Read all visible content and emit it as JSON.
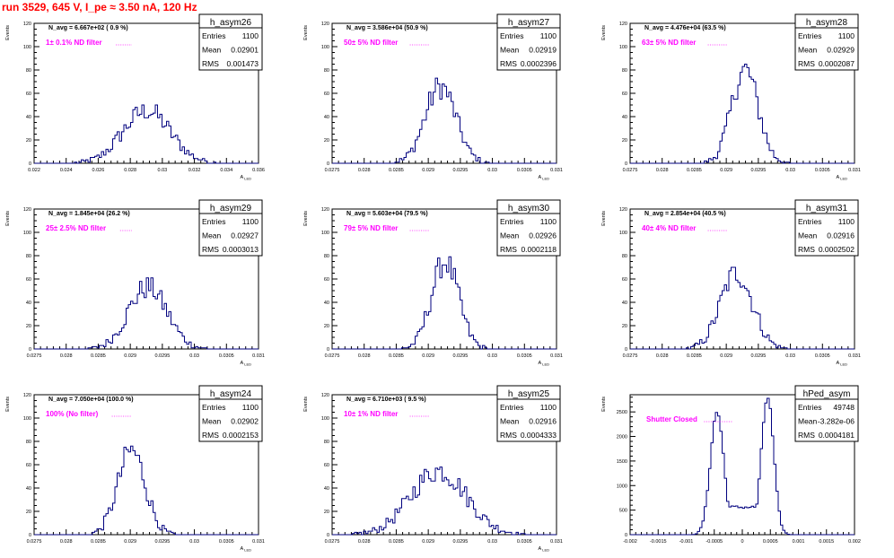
{
  "run_title": "run 3529,   645 V, I_pe ≈ 3.50 nA, 120 Hz",
  "colors": {
    "histogram_line": "#00007f",
    "filter_label": "#ff00ff",
    "run_title": "#ff0000",
    "frame": "#000000",
    "background": "#ffffff"
  },
  "chart_data": [
    {
      "type": "histogram",
      "name": "h_asym26",
      "stats": {
        "entries_label": "Entries",
        "entries": "1100",
        "mean_label": "Mean",
        "mean": "0.02901",
        "rms_label": "RMS",
        "rms": "0.001473"
      },
      "navg_label": "N_avg = 6.667e+02 ( 0.9 %)",
      "filter_label": "1± 0.1% ND filter",
      "ylabel": "Events",
      "xlabel": "A_LED",
      "xlim": [
        0.022,
        0.036
      ],
      "ylim": [
        0,
        120
      ],
      "xticks": [
        "0.022",
        "0.024",
        "0.026",
        "0.028",
        "0.03",
        "0.032",
        "0.034",
        "0.036"
      ],
      "yticks": [
        "0",
        "20",
        "40",
        "60",
        "80",
        "100",
        "120"
      ],
      "xtick_values": [
        0.022,
        0.024,
        0.026,
        0.028,
        0.03,
        0.032,
        0.034,
        0.036
      ],
      "ytick_values": [
        0,
        20,
        40,
        60,
        80,
        100,
        120
      ],
      "x_minor_per_major": 5,
      "y_minor_per_major": 4,
      "peak_bins": [
        [
          0.0275,
          6
        ],
        [
          0.0282,
          17
        ],
        [
          0.0288,
          30
        ],
        [
          0.0294,
          40
        ],
        [
          0.03,
          41
        ],
        [
          0.0306,
          32
        ],
        [
          0.0312,
          19
        ],
        [
          0.0318,
          9
        ]
      ],
      "peak": {
        "mean": 0.02901,
        "sigma": 0.001473,
        "height": 45
      }
    },
    {
      "type": "histogram",
      "name": "h_asym27",
      "stats": {
        "entries_label": "Entries",
        "entries": "1100",
        "mean_label": "Mean",
        "mean": "0.02919",
        "rms_label": "RMS",
        "rms": "0.0002396"
      },
      "navg_label": "N_avg = 3.586e+04 (50.9 %)",
      "filter_label": "50± 5% ND filter",
      "ylabel": "Events",
      "xlabel": "A_LED",
      "xlim": [
        0.0275,
        0.031
      ],
      "ylim": [
        0,
        120
      ],
      "xticks": [
        "0.0275",
        "0.028",
        "0.0285",
        "0.029",
        "0.0295",
        "0.03",
        "0.0305",
        "0.031"
      ],
      "yticks": [
        "0",
        "20",
        "40",
        "60",
        "80",
        "100",
        "120"
      ],
      "xtick_values": [
        0.0275,
        0.028,
        0.0285,
        0.029,
        0.0295,
        0.03,
        0.0305,
        0.031
      ],
      "ytick_values": [
        0,
        20,
        40,
        60,
        80,
        100,
        120
      ],
      "x_minor_per_major": 5,
      "y_minor_per_major": 4,
      "peak": {
        "mean": 0.02919,
        "sigma": 0.0002396,
        "height": 66
      }
    },
    {
      "type": "histogram",
      "name": "h_asym28",
      "stats": {
        "entries_label": "Entries",
        "entries": "1100",
        "mean_label": "Mean",
        "mean": "0.02929",
        "rms_label": "RMS",
        "rms": "0.0002087"
      },
      "navg_label": "N_avg = 4.476e+04 (63.5 %)",
      "filter_label": "63± 5% ND filter",
      "ylabel": "Events",
      "xlabel": "A_LED",
      "xlim": [
        0.0275,
        0.031
      ],
      "ylim": [
        0,
        120
      ],
      "xticks": [
        "0.0275",
        "0.028",
        "0.0285",
        "0.029",
        "0.0295",
        "0.03",
        "0.0305",
        "0.031"
      ],
      "yticks": [
        "0",
        "20",
        "40",
        "60",
        "80",
        "100",
        "120"
      ],
      "xtick_values": [
        0.0275,
        0.028,
        0.0285,
        0.029,
        0.0295,
        0.03,
        0.0305,
        0.031
      ],
      "ytick_values": [
        0,
        20,
        40,
        60,
        80,
        100,
        120
      ],
      "x_minor_per_major": 5,
      "y_minor_per_major": 4,
      "peak": {
        "mean": 0.02929,
        "sigma": 0.0002087,
        "height": 80
      }
    },
    {
      "type": "histogram",
      "name": "h_asym29",
      "stats": {
        "entries_label": "Entries",
        "entries": "1100",
        "mean_label": "Mean",
        "mean": "0.02927",
        "rms_label": "RMS",
        "rms": "0.0003013"
      },
      "navg_label": "N_avg = 1.845e+04 (26.2 %)",
      "filter_label": "25± 2.5% ND filter",
      "ylabel": "Events",
      "xlabel": "A_LED",
      "xlim": [
        0.0275,
        0.031
      ],
      "ylim": [
        0,
        120
      ],
      "xticks": [
        "0.0275",
        "0.028",
        "0.0285",
        "0.029",
        "0.0295",
        "0.03",
        "0.0305",
        "0.031"
      ],
      "yticks": [
        "0",
        "20",
        "40",
        "60",
        "80",
        "100",
        "120"
      ],
      "xtick_values": [
        0.0275,
        0.028,
        0.0285,
        0.029,
        0.0295,
        0.03,
        0.0305,
        0.031
      ],
      "ytick_values": [
        0,
        20,
        40,
        60,
        80,
        100,
        120
      ],
      "x_minor_per_major": 5,
      "y_minor_per_major": 4,
      "peak": {
        "mean": 0.02927,
        "sigma": 0.0003013,
        "height": 53
      }
    },
    {
      "type": "histogram",
      "name": "h_asym30",
      "stats": {
        "entries_label": "Entries",
        "entries": "1100",
        "mean_label": "Mean",
        "mean": "0.02926",
        "rms_label": "RMS",
        "rms": "0.0002118"
      },
      "navg_label": "N_avg = 5.603e+04 (79.5 %)",
      "filter_label": "79± 5% ND filter",
      "ylabel": "Events",
      "xlabel": "A_LED",
      "xlim": [
        0.0275,
        0.031
      ],
      "ylim": [
        0,
        120
      ],
      "xticks": [
        "0.0275",
        "0.028",
        "0.0285",
        "0.029",
        "0.0295",
        "0.03",
        "0.0305",
        "0.031"
      ],
      "yticks": [
        "0",
        "20",
        "40",
        "60",
        "80",
        "100",
        "120"
      ],
      "xtick_values": [
        0.0275,
        0.028,
        0.0285,
        0.029,
        0.0295,
        0.03,
        0.0305,
        0.031
      ],
      "ytick_values": [
        0,
        20,
        40,
        60,
        80,
        100,
        120
      ],
      "x_minor_per_major": 5,
      "y_minor_per_major": 4,
      "peak": {
        "mean": 0.02926,
        "sigma": 0.0002118,
        "height": 75
      }
    },
    {
      "type": "histogram",
      "name": "h_asym31",
      "stats": {
        "entries_label": "Entries",
        "entries": "1100",
        "mean_label": "Mean",
        "mean": "0.02916",
        "rms_label": "RMS",
        "rms": "0.0002502"
      },
      "navg_label": "N_avg = 2.854e+04 (40.5 %)",
      "filter_label": "40± 4% ND filter",
      "ylabel": "Events",
      "xlabel": "A_LED",
      "xlim": [
        0.0275,
        0.031
      ],
      "ylim": [
        0,
        120
      ],
      "xticks": [
        "0.0275",
        "0.028",
        "0.0285",
        "0.029",
        "0.0295",
        "0.03",
        "0.0305",
        "0.031"
      ],
      "yticks": [
        "0",
        "20",
        "40",
        "60",
        "80",
        "100",
        "120"
      ],
      "xtick_values": [
        0.0275,
        0.028,
        0.0285,
        0.029,
        0.0295,
        0.03,
        0.0305,
        0.031
      ],
      "ytick_values": [
        0,
        20,
        40,
        60,
        80,
        100,
        120
      ],
      "x_minor_per_major": 5,
      "y_minor_per_major": 4,
      "peak": {
        "mean": 0.02916,
        "sigma": 0.0002502,
        "height": 65
      }
    },
    {
      "type": "histogram",
      "name": "h_asym24",
      "stats": {
        "entries_label": "Entries",
        "entries": "1100",
        "mean_label": "Mean",
        "mean": "0.02902",
        "rms_label": "RMS",
        "rms": "0.0002153"
      },
      "navg_label": "N_avg = 7.050e+04 (100.0 %)",
      "filter_label": "100% (No filter)",
      "ylabel": "Events",
      "xlabel": "A_LED",
      "xlim": [
        0.0275,
        0.031
      ],
      "ylim": [
        0,
        120
      ],
      "xticks": [
        "0.0275",
        "0.028",
        "0.0285",
        "0.029",
        "0.0295",
        "0.03",
        "0.0305",
        "0.031"
      ],
      "yticks": [
        "0",
        "20",
        "40",
        "60",
        "80",
        "100",
        "120"
      ],
      "xtick_values": [
        0.0275,
        0.028,
        0.0285,
        0.029,
        0.0295,
        0.03,
        0.0305,
        0.031
      ],
      "ytick_values": [
        0,
        20,
        40,
        60,
        80,
        100,
        120
      ],
      "x_minor_per_major": 5,
      "y_minor_per_major": 4,
      "peak": {
        "mean": 0.02902,
        "sigma": 0.0002153,
        "height": 72
      }
    },
    {
      "type": "histogram",
      "name": "h_asym25",
      "stats": {
        "entries_label": "Entries",
        "entries": "1100",
        "mean_label": "Mean",
        "mean": "0.02916",
        "rms_label": "RMS",
        "rms": "0.0004333"
      },
      "navg_label": "N_avg = 6.710e+03 ( 9.5 %)",
      "filter_label": "10± 1% ND filter",
      "ylabel": "Events",
      "xlabel": "A_LED",
      "xlim": [
        0.0275,
        0.031
      ],
      "ylim": [
        0,
        120
      ],
      "xticks": [
        "0.0275",
        "0.028",
        "0.0285",
        "0.029",
        "0.0295",
        "0.03",
        "0.0305",
        "0.031"
      ],
      "yticks": [
        "0",
        "20",
        "40",
        "60",
        "80",
        "100",
        "120"
      ],
      "xtick_values": [
        0.0275,
        0.028,
        0.0285,
        0.029,
        0.0295,
        0.03,
        0.0305,
        0.031
      ],
      "ytick_values": [
        0,
        20,
        40,
        60,
        80,
        100,
        120
      ],
      "x_minor_per_major": 5,
      "y_minor_per_major": 4,
      "peak_bins": [
        [
          0.02855,
          12
        ],
        [
          0.02872,
          25
        ],
        [
          0.02888,
          42
        ],
        [
          0.02905,
          58
        ],
        [
          0.02921,
          60
        ],
        [
          0.02938,
          55
        ],
        [
          0.02955,
          40
        ],
        [
          0.02972,
          22
        ],
        [
          0.02988,
          10
        ]
      ],
      "peak": {
        "mean": 0.02916,
        "sigma": 0.0004333,
        "height": 55
      }
    },
    {
      "type": "histogram",
      "name": "hPed_asym",
      "stats": {
        "entries_label": "Entries",
        "entries": "49748",
        "mean_label": "Mean",
        "mean": "-3.282e-06",
        "rms_label": "RMS",
        "rms": "0.0004181"
      },
      "filter_label": "Shutter Closed",
      "ylabel": "Events",
      "xlabel": "",
      "xlim": [
        -0.002,
        0.002
      ],
      "ylim": [
        0,
        2850
      ],
      "xticks": [
        "-0.002",
        "-0.0015",
        "-0.001",
        "-0.0005",
        "0",
        "0.0005",
        "0.001",
        "0.0015",
        "0.002"
      ],
      "yticks": [
        "0",
        "500",
        "1000",
        "1500",
        "2000",
        "2500"
      ],
      "xtick_values": [
        -0.002,
        -0.0015,
        -0.001,
        -0.0005,
        0,
        0.0005,
        0.001,
        0.0015,
        0.002
      ],
      "ytick_values": [
        0,
        500,
        1000,
        1500,
        2000,
        2500
      ],
      "x_minor_per_major": 5,
      "y_minor_per_major": 5,
      "bimodal": {
        "centers": [
          -0.00045,
          0.00045
        ],
        "sigmas": [
          0.00012,
          0.00011
        ],
        "heights": [
          2500,
          2800
        ],
        "floor": 560
      }
    }
  ]
}
